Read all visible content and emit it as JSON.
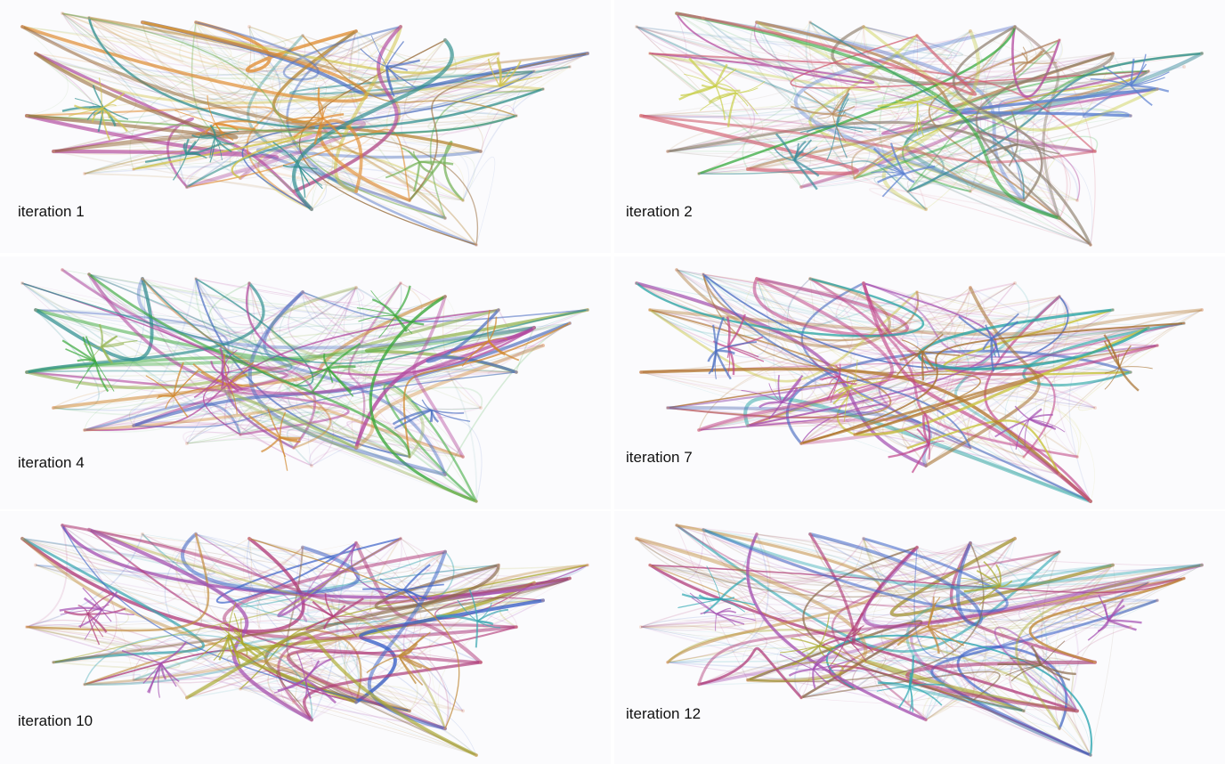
{
  "panels": [
    {
      "label": "iteration 1",
      "colors": [
        "#b98a3a",
        "#4d6fc2",
        "#b3489e",
        "#78b35a",
        "#d0c34a",
        "#e08a2c",
        "#2f8f8f",
        "#9a6f3f"
      ]
    },
    {
      "label": "iteration 2",
      "colors": [
        "#b3489e",
        "#5a7fd0",
        "#b78a5a",
        "#2fa838",
        "#c9cf4a",
        "#3c8f9c",
        "#8f7f6f",
        "#d15a6e"
      ]
    },
    {
      "label": "iteration 4",
      "colors": [
        "#4d6fc2",
        "#4d6fc2",
        "#b3489e",
        "#3aa83a",
        "#9ab85a",
        "#d0872e",
        "#b3489e",
        "#2f8f8f"
      ]
    },
    {
      "label": "iteration 7",
      "colors": [
        "#c0458a",
        "#c0458a",
        "#a6702e",
        "#4d6fc2",
        "#a44fb0",
        "#c8c43a",
        "#29a6a6",
        "#b2782e"
      ]
    },
    {
      "label": "iteration 10",
      "colors": [
        "#b03a78",
        "#b03a78",
        "#8a6a4a",
        "#a44fb0",
        "#3c63c8",
        "#a9a82a",
        "#3aa6b0",
        "#c08a3a"
      ]
    },
    {
      "label": "iteration 12",
      "colors": [
        "#b03a78",
        "#b03a78",
        "#8a6a4a",
        "#a44fb0",
        "#3c63c8",
        "#a9a82a",
        "#2ca6b0",
        "#c08a3a"
      ]
    }
  ]
}
